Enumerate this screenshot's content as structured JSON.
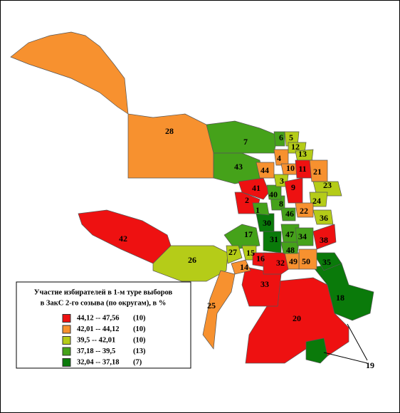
{
  "legend": {
    "title_lines": [
      "Участие избирателей в 1-м туре выборов",
      "в ЗакС 2-го созыва (по округам), в %"
    ],
    "items": [
      {
        "color": "#ee1111",
        "range": "44,12 -- 47,56",
        "count": "(10)"
      },
      {
        "color": "#f7912f",
        "range": "42,01 -- 44,12",
        "count": "(10)"
      },
      {
        "color": "#b5cc18",
        "range": "39,5   -- 42,01",
        "count": "(10)"
      },
      {
        "color": "#45a21a",
        "range": "37,18 -- 39,5",
        "count": "(13)"
      },
      {
        "color": "#0a7a0a",
        "range": "32,04 -- 37,18",
        "count": "(7)"
      }
    ]
  },
  "districts": [
    {
      "label": "28",
      "class": 1
    },
    {
      "label": "42",
      "class": 0
    },
    {
      "label": "26",
      "class": 2
    },
    {
      "label": "25",
      "class": 1
    },
    {
      "label": "20",
      "class": 0
    },
    {
      "label": "18",
      "class": 4
    },
    {
      "label": "19",
      "class": 4
    },
    {
      "label": "33",
      "class": 0
    },
    {
      "label": "7",
      "class": 3
    },
    {
      "label": "43",
      "class": 3
    },
    {
      "label": "41",
      "class": 0
    },
    {
      "label": "2",
      "class": 0
    },
    {
      "label": "17",
      "class": 3
    },
    {
      "label": "27",
      "class": 2
    },
    {
      "label": "15",
      "class": 2
    },
    {
      "label": "14",
      "class": 1
    },
    {
      "label": "16",
      "class": 0
    },
    {
      "label": "32",
      "class": 0
    },
    {
      "label": "35",
      "class": 4
    },
    {
      "label": "50",
      "class": 1
    },
    {
      "label": "49",
      "class": 1
    },
    {
      "label": "48",
      "class": 3
    },
    {
      "label": "31",
      "class": 4
    },
    {
      "label": "30",
      "class": 4
    },
    {
      "label": "1",
      "class": 3
    },
    {
      "label": "8",
      "class": 3
    },
    {
      "label": "40",
      "class": 3
    },
    {
      "label": "3",
      "class": 2
    },
    {
      "label": "44",
      "class": 1
    },
    {
      "label": "4",
      "class": 1
    },
    {
      "label": "6",
      "class": 3
    },
    {
      "label": "5",
      "class": 2
    },
    {
      "label": "12",
      "class": 2
    },
    {
      "label": "13",
      "class": 2
    },
    {
      "label": "10",
      "class": 1
    },
    {
      "label": "11",
      "class": 0
    },
    {
      "label": "9",
      "class": 0
    },
    {
      "label": "21",
      "class": 1
    },
    {
      "label": "23",
      "class": 2
    },
    {
      "label": "24",
      "class": 2
    },
    {
      "label": "22",
      "class": 1
    },
    {
      "label": "46",
      "class": 3
    },
    {
      "label": "36",
      "class": 2
    },
    {
      "label": "47",
      "class": 3
    },
    {
      "label": "34",
      "class": 3
    },
    {
      "label": "38",
      "class": 0
    }
  ]
}
